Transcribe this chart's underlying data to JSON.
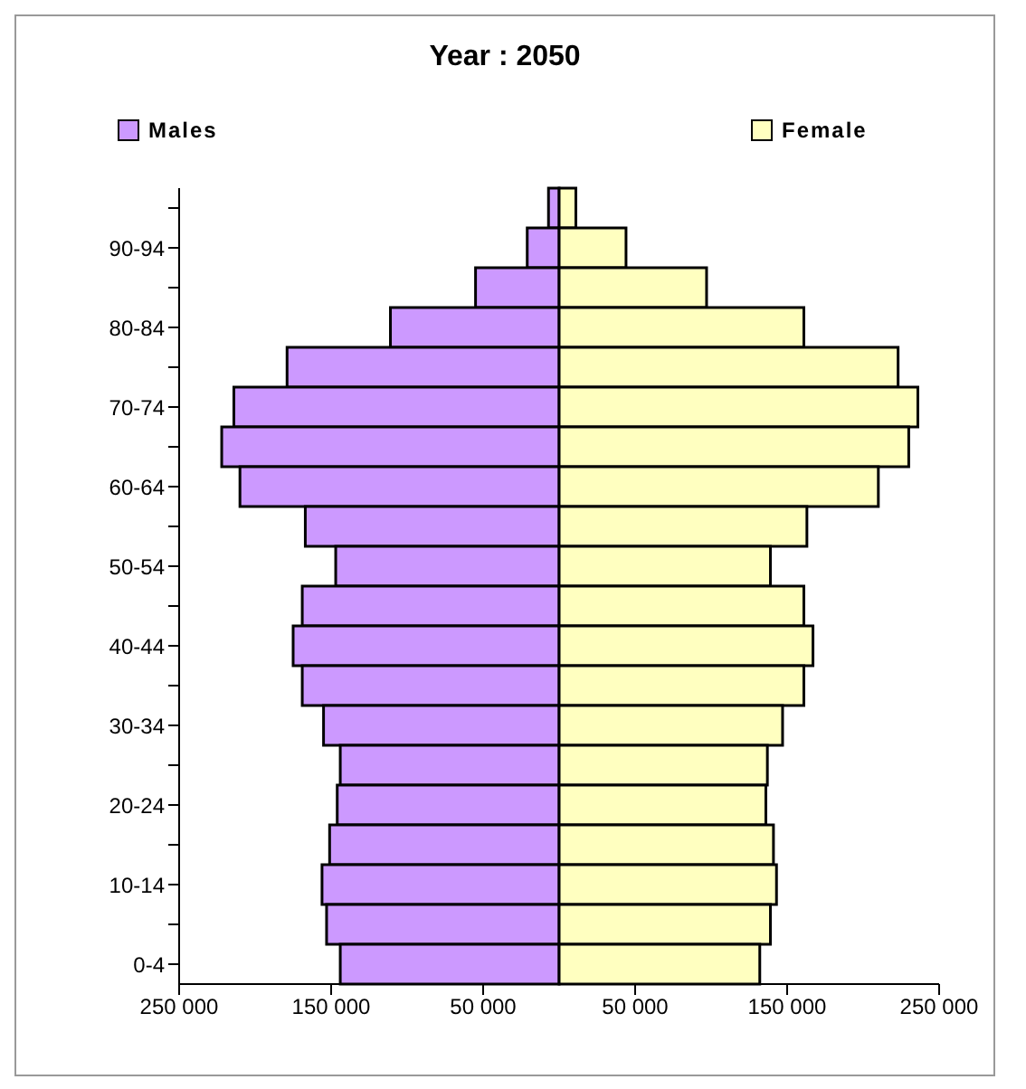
{
  "chart_data": {
    "type": "bar",
    "orientation": "horizontal",
    "stacked": true,
    "title": "Year : 2050",
    "categories": [
      null,
      "90-94",
      null,
      "80-84",
      null,
      "70-74",
      null,
      "60-64",
      null,
      "50-54",
      null,
      "40-44",
      null,
      "30-34",
      null,
      "20-24",
      null,
      "10-14",
      null,
      "0-4"
    ],
    "series": [
      {
        "name": "Males",
        "color": "#cc99ff",
        "values": [
          -7000,
          -21000,
          -55000,
          -111000,
          -179000,
          -214000,
          -222000,
          -210000,
          -167000,
          -147000,
          -169000,
          -175000,
          -169000,
          -155000,
          -144000,
          -146000,
          -151000,
          -156000,
          -153000,
          -144000
        ]
      },
      {
        "name": "Female",
        "color": "#ffffc0",
        "values": [
          11000,
          44000,
          97000,
          161000,
          223000,
          236000,
          230000,
          210000,
          163000,
          139000,
          161000,
          167000,
          161000,
          147000,
          137000,
          136000,
          141000,
          143000,
          139000,
          132000
        ]
      }
    ],
    "xlim": [
      -250000,
      250000
    ],
    "xticks": [
      {
        "value": -250000,
        "label": "250 000"
      },
      {
        "value": -150000,
        "label": "150 000"
      },
      {
        "value": -50000,
        "label": "50 000"
      },
      {
        "value": 50000,
        "label": "50 000"
      },
      {
        "value": 150000,
        "label": "150 000"
      },
      {
        "value": 250000,
        "label": "250 000"
      }
    ],
    "grid": false,
    "legend": "top"
  }
}
